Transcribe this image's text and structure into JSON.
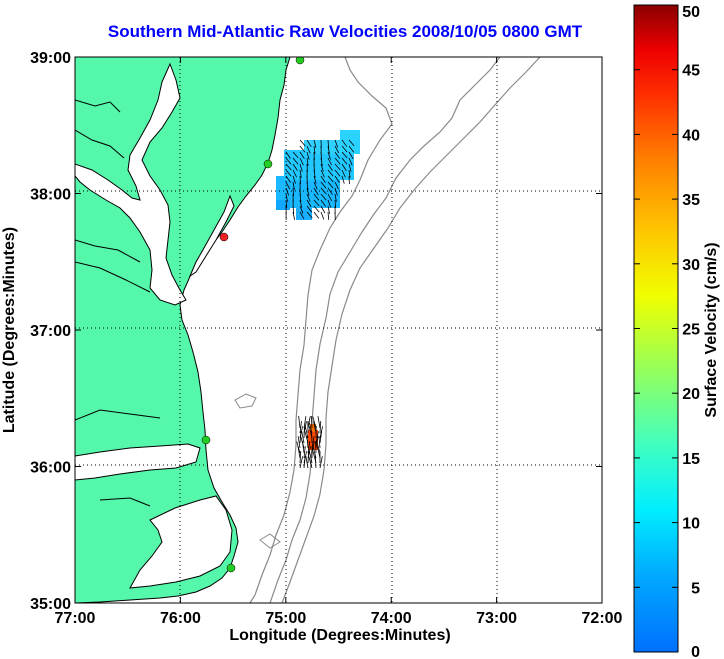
{
  "title": "Southern Mid-Atlantic Raw Velocities 2008/10/05 0800 GMT",
  "axes": {
    "xlabel": "Longitude (Degrees:Minutes)",
    "ylabel": "Latitude (Degrees:Minutes)",
    "xticks": [
      "77:00",
      "76:00",
      "75:00",
      "74:00",
      "73:00",
      "72:00"
    ],
    "yticks": [
      "39:00",
      "38:00",
      "37:00",
      "36:00",
      "35:00"
    ],
    "x_range_deg_west": [
      77,
      72
    ],
    "y_range_deg_north": [
      35,
      39
    ],
    "grid": "dotted"
  },
  "colorbar": {
    "label": "Surface Velocity (cm/s)",
    "ticks": [
      "50",
      "45",
      "40",
      "35",
      "30",
      "25",
      "20",
      "15",
      "10",
      "5",
      "0"
    ],
    "range": [
      0,
      50
    ],
    "colormap": "jet"
  },
  "colors": {
    "land": "#55f7aa",
    "coastline": "#000000",
    "bathymetry": "#8a8a8a",
    "title": "#0000ff",
    "site_green": "#22cc22",
    "site_red": "#ee2222"
  }
}
